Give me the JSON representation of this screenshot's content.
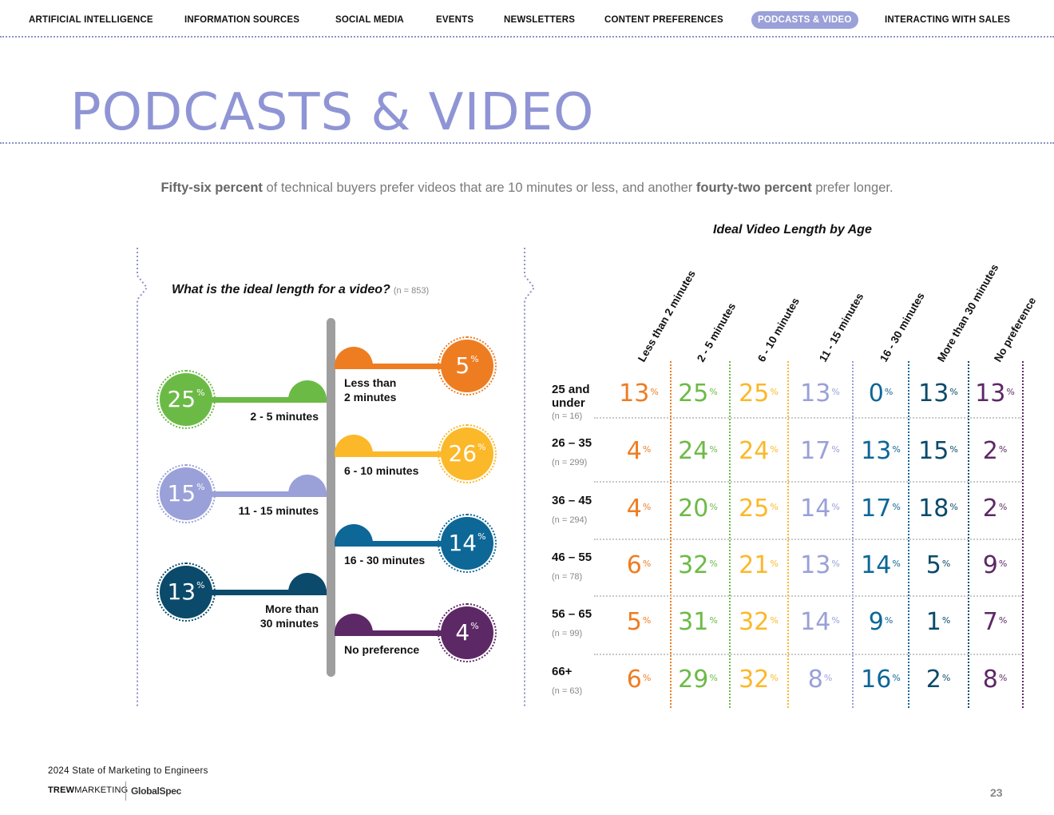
{
  "nav": {
    "items": [
      {
        "label": "ARTIFICIAL INTELLIGENCE",
        "active": false
      },
      {
        "label": "INFORMATION SOURCES",
        "active": false
      },
      {
        "label": "SOCIAL MEDIA",
        "active": false
      },
      {
        "label": "EVENTS",
        "active": false
      },
      {
        "label": "NEWSLETTERS",
        "active": false
      },
      {
        "label": "CONTENT PREFERENCES",
        "active": false
      },
      {
        "label": "PODCASTS & VIDEO",
        "active": true
      },
      {
        "label": "INTERACTING WITH SALES",
        "active": false
      }
    ],
    "active_color": "#9aa0d8"
  },
  "page_title": "PODCASTS & VIDEO",
  "subtitle": {
    "bold1": "Fifty-six percent",
    "text1": " of technical buyers prefer videos that are 10 minutes or less, and another ",
    "bold2": "fourty-two percent",
    "text2": " prefer longer."
  },
  "colors": {
    "orange": "#ee7d22",
    "green": "#6cba46",
    "yellow": "#fbb829",
    "lavender": "#9aa0d8",
    "blue": "#0d6797",
    "navy": "#0b4a6a",
    "purple": "#5d2866",
    "grey_stem": "#9e9e9e"
  },
  "chart_data": [
    {
      "type": "bar",
      "title": "What is the ideal length for a video?",
      "n_label": "(n = 853)",
      "categories": [
        "Less than 2 minutes",
        "2 - 5 minutes",
        "6 - 10 minutes",
        "11 - 15 minutes",
        "16 - 30 minutes",
        "More than 30 minutes",
        "No preference"
      ],
      "display_labels": [
        "Less than\n2 minutes",
        "2 - 5 minutes",
        "6 - 10 minutes",
        "11 - 15 minutes",
        "16 - 30 minutes",
        "More than\n30 minutes",
        "No preference"
      ],
      "values": [
        5,
        25,
        26,
        15,
        14,
        13,
        4
      ],
      "unit": "%",
      "colors": [
        "#ee7d22",
        "#6cba46",
        "#fbb829",
        "#9aa0d8",
        "#0d6797",
        "#0b4a6a",
        "#5d2866"
      ]
    },
    {
      "type": "table",
      "title": "Ideal Video Length by Age",
      "columns": [
        "Less than 2 minutes",
        "2 - 5 minutes",
        "6 - 10 minutes",
        "11 - 15 minutes",
        "16 - 30 minutes",
        "More than 30 minutes",
        "No preference"
      ],
      "column_colors": [
        "#ee7d22",
        "#6cba46",
        "#fbb829",
        "#9aa0d8",
        "#0d6797",
        "#0b4a6a",
        "#5d2866"
      ],
      "unit": "%",
      "rows": [
        {
          "label": "25 and\nunder",
          "n": "(n = 16)",
          "values": [
            13,
            25,
            25,
            13,
            0,
            13,
            13
          ]
        },
        {
          "label": "26 – 35",
          "n": "(n = 299)",
          "values": [
            4,
            24,
            24,
            17,
            13,
            15,
            2
          ]
        },
        {
          "label": "36 – 45",
          "n": "(n = 294)",
          "values": [
            4,
            20,
            25,
            14,
            17,
            18,
            2
          ]
        },
        {
          "label": "46 – 55",
          "n": "(n = 78)",
          "values": [
            6,
            32,
            21,
            13,
            14,
            5,
            9
          ]
        },
        {
          "label": "56 – 65",
          "n": "(n = 99)",
          "values": [
            5,
            31,
            32,
            14,
            9,
            1,
            7
          ]
        },
        {
          "label": "66+",
          "n": "(n = 63)",
          "values": [
            6,
            29,
            32,
            8,
            16,
            2,
            8
          ]
        }
      ]
    }
  ],
  "footer": {
    "report": "2024 State of Marketing to Engineers",
    "logo_trew_bold": "TREW",
    "logo_trew_rest": "MARKETING",
    "logo_globalspec": "GlobalSpec",
    "page_number": "23"
  }
}
